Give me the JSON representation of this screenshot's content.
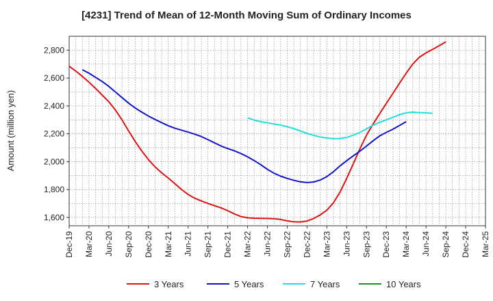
{
  "chart_data": {
    "type": "line",
    "title": "[4231]  Trend of Mean of 12-Month Moving Sum of Ordinary Incomes",
    "xlabel": "",
    "ylabel": "Amount (million yen)",
    "ylim": [
      1540,
      2900
    ],
    "yticks": [
      1600,
      1800,
      2000,
      2200,
      2400,
      2600,
      2800
    ],
    "ytick_labels": [
      "1,600",
      "1,800",
      "2,000",
      "2,200",
      "2,400",
      "2,600",
      "2,800"
    ],
    "x_start": "Dec-19",
    "x_months_total": 63,
    "xticks": [
      "Dec-19",
      "Mar-20",
      "Jun-20",
      "Sep-20",
      "Dec-20",
      "Mar-21",
      "Jun-21",
      "Sep-21",
      "Dec-21",
      "Mar-22",
      "Jun-22",
      "Sep-22",
      "Dec-22",
      "Mar-23",
      "Jun-23",
      "Sep-23",
      "Dec-23",
      "Mar-24",
      "Jun-24",
      "Sep-24",
      "Dec-24",
      "Mar-25"
    ],
    "grid": true,
    "legend_position": "bottom",
    "series": [
      {
        "name": "3 Years",
        "color": "#dd1111",
        "start_month": 0,
        "values": [
          2685,
          2650,
          2612,
          2570,
          2525,
          2478,
          2430,
          2370,
          2300,
          2220,
          2145,
          2075,
          2015,
          1962,
          1920,
          1882,
          1842,
          1800,
          1765,
          1738,
          1718,
          1700,
          1684,
          1668,
          1648,
          1625,
          1606,
          1597,
          1594,
          1593,
          1592,
          1590,
          1585,
          1575,
          1568,
          1567,
          1574,
          1592,
          1618,
          1652,
          1705,
          1782,
          1880,
          1985,
          2092,
          2190,
          2270,
          2345,
          2418,
          2490,
          2563,
          2635,
          2700,
          2750,
          2780,
          2806,
          2832,
          2860
        ]
      },
      {
        "name": "5 Years",
        "color": "#1111cc",
        "start_month": 2,
        "values": [
          2660,
          2635,
          2605,
          2575,
          2540,
          2500,
          2460,
          2420,
          2385,
          2355,
          2327,
          2303,
          2280,
          2258,
          2240,
          2226,
          2212,
          2197,
          2180,
          2158,
          2135,
          2112,
          2094,
          2078,
          2058,
          2035,
          2008,
          1978,
          1945,
          1917,
          1896,
          1880,
          1866,
          1855,
          1850,
          1854,
          1868,
          1893,
          1928,
          1970,
          2007,
          2042,
          2075,
          2112,
          2150,
          2185,
          2210,
          2233,
          2260,
          2287
        ]
      },
      {
        "name": "7 Years",
        "color": "#22dddd",
        "start_month": 27,
        "values": [
          2315,
          2298,
          2287,
          2279,
          2270,
          2262,
          2251,
          2237,
          2220,
          2203,
          2189,
          2177,
          2170,
          2165,
          2166,
          2174,
          2190,
          2210,
          2235,
          2262,
          2282,
          2300,
          2318,
          2337,
          2350,
          2355,
          2352,
          2350,
          2347
        ]
      },
      {
        "name": "10 Years",
        "color": "#228822",
        "start_month": 0,
        "values": []
      }
    ]
  }
}
